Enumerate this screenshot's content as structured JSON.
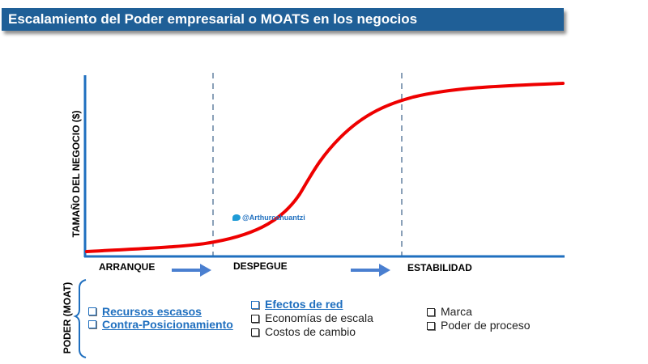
{
  "title": "Escalamiento  del Poder empresarial  o MOATS en los negocios",
  "y_axis_label": "TAMAÑO DEL NEGOCIO ($)",
  "moat_label": "PODER (MOAT)",
  "watermark": "@Arthurcahuantzi",
  "stages": [
    "ARRANQUE",
    "DESPEGUE",
    "ESTABILIDAD"
  ],
  "moats": {
    "arranque": [
      "Recursos escasos",
      "Contra-Posicionamiento"
    ],
    "despegue": [
      "Efectos de red",
      "Economías de escala",
      "Costos de cambio"
    ],
    "estabilidad": [
      "Marca",
      "Poder de proceso"
    ]
  },
  "colors": {
    "title_bar": "#1f5f97",
    "axis": "#1f6fbf",
    "curve": "#ee0000",
    "divider": "#8aa0b8",
    "arrow": "#4a7fd0",
    "highlight_text": "#1f6fbf"
  }
}
